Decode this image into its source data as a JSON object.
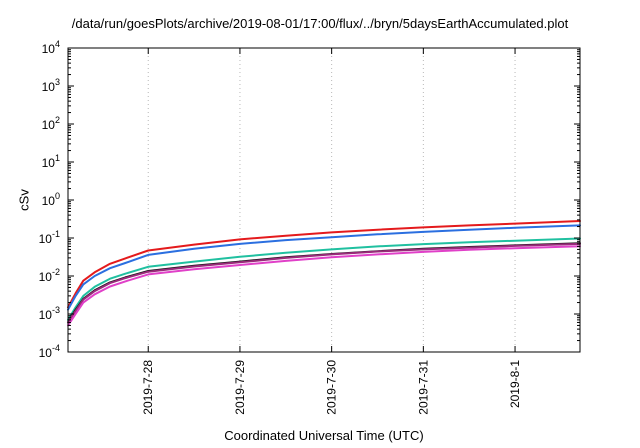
{
  "chart_data": {
    "type": "line",
    "title": "/data/run/goesPlots/archive/2019-08-01/17:00/flux/../bryn/5daysEarthAccumulated.plot",
    "xlabel": "Coordinated Universal Time (UTC)",
    "ylabel": "cSv",
    "yscale": "log",
    "ylim": [
      0.0001,
      10000
    ],
    "xlim": [
      "2019-07-27 03:00",
      "2019-08-01 17:00"
    ],
    "grid": true,
    "legend": "none",
    "y_ticks": [
      {
        "base": "10",
        "exp": "-4"
      },
      {
        "base": "10",
        "exp": "-3"
      },
      {
        "base": "10",
        "exp": "-2"
      },
      {
        "base": "10",
        "exp": "-1"
      },
      {
        "base": "10",
        "exp": "0"
      },
      {
        "base": "10",
        "exp": "1"
      },
      {
        "base": "10",
        "exp": "2"
      },
      {
        "base": "10",
        "exp": "3"
      },
      {
        "base": "10",
        "exp": "4"
      }
    ],
    "x_ticks": [
      "2019-7-28",
      "2019-7-29",
      "2019-7-30",
      "2019-7-31",
      "2019-8-1"
    ],
    "x": [
      "2019-07-27 03:00",
      "2019-07-27 05:00",
      "2019-07-27 07:00",
      "2019-07-27 10:00",
      "2019-07-27 14:00",
      "2019-07-27 18:00",
      "2019-07-28 00:00",
      "2019-07-28 12:00",
      "2019-07-29 00:00",
      "2019-07-29 12:00",
      "2019-07-30 00:00",
      "2019-07-30 12:00",
      "2019-07-31 00:00",
      "2019-07-31 12:00",
      "2019-08-01 00:00",
      "2019-08-01 17:00"
    ],
    "series": [
      {
        "color": "#e41a1c",
        "values": [
          0.0015,
          0.0035,
          0.0075,
          0.0125,
          0.021,
          0.029,
          0.047,
          0.067,
          0.092,
          0.115,
          0.14,
          0.165,
          0.19,
          0.215,
          0.24,
          0.28
        ]
      },
      {
        "color": "#2b6fe0",
        "values": [
          0.0013,
          0.003,
          0.006,
          0.01,
          0.016,
          0.022,
          0.036,
          0.052,
          0.07,
          0.088,
          0.105,
          0.125,
          0.145,
          0.165,
          0.185,
          0.215
        ]
      },
      {
        "color": "#20c0a0",
        "values": [
          0.0007,
          0.0015,
          0.003,
          0.0052,
          0.0085,
          0.0115,
          0.0175,
          0.024,
          0.032,
          0.041,
          0.05,
          0.06,
          0.069,
          0.077,
          0.085,
          0.097
        ]
      },
      {
        "color": "#1a1a1a",
        "values": [
          0.0006,
          0.0013,
          0.0025,
          0.0042,
          0.0068,
          0.0092,
          0.0135,
          0.0185,
          0.024,
          0.031,
          0.038,
          0.045,
          0.052,
          0.058,
          0.064,
          0.073
        ]
      },
      {
        "color": "#9a2a7a",
        "values": [
          0.0006,
          0.0012,
          0.0024,
          0.004,
          0.0065,
          0.0088,
          0.013,
          0.0178,
          0.023,
          0.03,
          0.037,
          0.044,
          0.05,
          0.056,
          0.062,
          0.07
        ]
      },
      {
        "color": "#e040c8",
        "values": [
          0.0005,
          0.001,
          0.002,
          0.0033,
          0.0053,
          0.0072,
          0.011,
          0.015,
          0.0195,
          0.025,
          0.031,
          0.037,
          0.043,
          0.049,
          0.054,
          0.061
        ]
      }
    ]
  }
}
